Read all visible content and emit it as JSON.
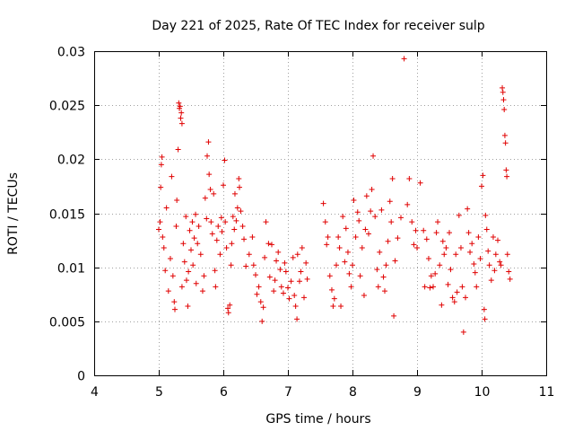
{
  "chart_data": {
    "type": "scatter",
    "title": "Day 221 of 2025, Rate Of TEC Index for receiver sulp",
    "xlabel": "GPS time / hours",
    "ylabel": "ROTI / TECUs",
    "xlim": [
      4,
      11
    ],
    "ylim": [
      0,
      0.03
    ],
    "xticks": [
      "4",
      "5",
      "6",
      "7",
      "8",
      "9",
      "10",
      "11"
    ],
    "yticks": [
      "0",
      "0.005",
      "0.01",
      "0.015",
      "0.02",
      "0.025",
      "0.03"
    ],
    "grid": true,
    "marker": "+",
    "colors": {
      "series": "#e00000",
      "grid": "#a0a0a0",
      "axes": "#000000"
    },
    "series": [
      {
        "name": "ROTI",
        "points": [
          [
            5.0,
            0.0135
          ],
          [
            5.02,
            0.0142
          ],
          [
            5.03,
            0.0174
          ],
          [
            5.04,
            0.0195
          ],
          [
            5.05,
            0.0202
          ],
          [
            5.06,
            0.0128
          ],
          [
            5.08,
            0.0118
          ],
          [
            5.1,
            0.0097
          ],
          [
            5.12,
            0.0155
          ],
          [
            5.15,
            0.0078
          ],
          [
            5.18,
            0.0108
          ],
          [
            5.2,
            0.0184
          ],
          [
            5.22,
            0.0092
          ],
          [
            5.24,
            0.0068
          ],
          [
            5.25,
            0.0061
          ],
          [
            5.27,
            0.0138
          ],
          [
            5.28,
            0.0162
          ],
          [
            5.3,
            0.0209
          ],
          [
            5.31,
            0.0252
          ],
          [
            5.32,
            0.0247
          ],
          [
            5.33,
            0.0249
          ],
          [
            5.34,
            0.0238
          ],
          [
            5.35,
            0.0243
          ],
          [
            5.36,
            0.0233
          ],
          [
            5.36,
            0.0082
          ],
          [
            5.38,
            0.0122
          ],
          [
            5.4,
            0.0105
          ],
          [
            5.42,
            0.0147
          ],
          [
            5.43,
            0.0088
          ],
          [
            5.45,
            0.0064
          ],
          [
            5.46,
            0.0096
          ],
          [
            5.48,
            0.0134
          ],
          [
            5.5,
            0.0116
          ],
          [
            5.52,
            0.0142
          ],
          [
            5.53,
            0.0102
          ],
          [
            5.55,
            0.0127
          ],
          [
            5.57,
            0.0149
          ],
          [
            5.58,
            0.0085
          ],
          [
            5.6,
            0.0122
          ],
          [
            5.62,
            0.0138
          ],
          [
            5.65,
            0.0112
          ],
          [
            5.68,
            0.0078
          ],
          [
            5.7,
            0.0092
          ],
          [
            5.72,
            0.0164
          ],
          [
            5.74,
            0.0145
          ],
          [
            5.75,
            0.0203
          ],
          [
            5.77,
            0.0216
          ],
          [
            5.78,
            0.0186
          ],
          [
            5.8,
            0.0172
          ],
          [
            5.81,
            0.0142
          ],
          [
            5.83,
            0.0131
          ],
          [
            5.85,
            0.0168
          ],
          [
            5.87,
            0.0097
          ],
          [
            5.88,
            0.0082
          ],
          [
            5.9,
            0.0125
          ],
          [
            5.92,
            0.0138
          ],
          [
            5.95,
            0.0112
          ],
          [
            5.97,
            0.0146
          ],
          [
            5.98,
            0.0133
          ],
          [
            6.0,
            0.0176
          ],
          [
            6.02,
            0.0199
          ],
          [
            6.03,
            0.0142
          ],
          [
            6.05,
            0.0118
          ],
          [
            6.07,
            0.0062
          ],
          [
            6.08,
            0.0058
          ],
          [
            6.1,
            0.0065
          ],
          [
            6.12,
            0.0102
          ],
          [
            6.13,
            0.0122
          ],
          [
            6.15,
            0.0147
          ],
          [
            6.17,
            0.0135
          ],
          [
            6.18,
            0.0168
          ],
          [
            6.2,
            0.0143
          ],
          [
            6.22,
            0.0155
          ],
          [
            6.24,
            0.0182
          ],
          [
            6.25,
            0.0174
          ],
          [
            6.27,
            0.0152
          ],
          [
            6.3,
            0.0138
          ],
          [
            6.32,
            0.0126
          ],
          [
            6.35,
            0.0101
          ],
          [
            6.4,
            0.0112
          ],
          [
            6.45,
            0.0128
          ],
          [
            6.47,
            0.0102
          ],
          [
            6.5,
            0.0093
          ],
          [
            6.52,
            0.0075
          ],
          [
            6.55,
            0.0082
          ],
          [
            6.58,
            0.0068
          ],
          [
            6.6,
            0.005
          ],
          [
            6.62,
            0.0063
          ],
          [
            6.64,
            0.0109
          ],
          [
            6.66,
            0.0142
          ],
          [
            6.7,
            0.0122
          ],
          [
            6.72,
            0.0091
          ],
          [
            6.75,
            0.0121
          ],
          [
            6.78,
            0.0078
          ],
          [
            6.8,
            0.0088
          ],
          [
            6.82,
            0.0106
          ],
          [
            6.85,
            0.0114
          ],
          [
            6.88,
            0.0098
          ],
          [
            6.9,
            0.0082
          ],
          [
            6.93,
            0.0076
          ],
          [
            6.95,
            0.0104
          ],
          [
            6.97,
            0.0096
          ],
          [
            7.0,
            0.0081
          ],
          [
            7.02,
            0.0071
          ],
          [
            7.05,
            0.0087
          ],
          [
            7.08,
            0.0109
          ],
          [
            7.1,
            0.0074
          ],
          [
            7.12,
            0.0064
          ],
          [
            7.14,
            0.0052
          ],
          [
            7.15,
            0.0112
          ],
          [
            7.18,
            0.0087
          ],
          [
            7.2,
            0.0096
          ],
          [
            7.22,
            0.0118
          ],
          [
            7.25,
            0.0072
          ],
          [
            7.28,
            0.0104
          ],
          [
            7.3,
            0.0089
          ],
          [
            7.55,
            0.0159
          ],
          [
            7.58,
            0.0142
          ],
          [
            7.6,
            0.0121
          ],
          [
            7.62,
            0.0128
          ],
          [
            7.65,
            0.0092
          ],
          [
            7.68,
            0.0079
          ],
          [
            7.7,
            0.0064
          ],
          [
            7.72,
            0.0071
          ],
          [
            7.75,
            0.0102
          ],
          [
            7.78,
            0.0128
          ],
          [
            7.8,
            0.0118
          ],
          [
            7.82,
            0.0064
          ],
          [
            7.85,
            0.0147
          ],
          [
            7.88,
            0.0105
          ],
          [
            7.9,
            0.0136
          ],
          [
            7.93,
            0.0114
          ],
          [
            7.95,
            0.0094
          ],
          [
            7.98,
            0.0082
          ],
          [
            8.0,
            0.0102
          ],
          [
            8.02,
            0.0162
          ],
          [
            8.05,
            0.0128
          ],
          [
            8.08,
            0.0151
          ],
          [
            8.1,
            0.0143
          ],
          [
            8.12,
            0.0092
          ],
          [
            8.15,
            0.0118
          ],
          [
            8.18,
            0.0074
          ],
          [
            8.2,
            0.0135
          ],
          [
            8.22,
            0.0166
          ],
          [
            8.25,
            0.0131
          ],
          [
            8.28,
            0.0152
          ],
          [
            8.3,
            0.0172
          ],
          [
            8.32,
            0.0203
          ],
          [
            8.35,
            0.0147
          ],
          [
            8.38,
            0.0098
          ],
          [
            8.4,
            0.0082
          ],
          [
            8.42,
            0.0114
          ],
          [
            8.45,
            0.0153
          ],
          [
            8.48,
            0.0091
          ],
          [
            8.5,
            0.0078
          ],
          [
            8.52,
            0.0102
          ],
          [
            8.55,
            0.0124
          ],
          [
            8.58,
            0.0161
          ],
          [
            8.6,
            0.0142
          ],
          [
            8.62,
            0.0182
          ],
          [
            8.64,
            0.0055
          ],
          [
            8.66,
            0.0106
          ],
          [
            8.7,
            0.0127
          ],
          [
            8.75,
            0.0146
          ],
          [
            8.8,
            0.0293
          ],
          [
            8.85,
            0.0158
          ],
          [
            8.88,
            0.0182
          ],
          [
            8.92,
            0.0142
          ],
          [
            8.95,
            0.0121
          ],
          [
            8.98,
            0.0134
          ],
          [
            9.0,
            0.0118
          ],
          [
            9.05,
            0.0178
          ],
          [
            9.1,
            0.0134
          ],
          [
            9.12,
            0.0082
          ],
          [
            9.15,
            0.0126
          ],
          [
            9.18,
            0.0108
          ],
          [
            9.2,
            0.0081
          ],
          [
            9.22,
            0.0092
          ],
          [
            9.25,
            0.0082
          ],
          [
            9.28,
            0.0094
          ],
          [
            9.3,
            0.0132
          ],
          [
            9.32,
            0.0142
          ],
          [
            9.35,
            0.0102
          ],
          [
            9.38,
            0.0065
          ],
          [
            9.4,
            0.0124
          ],
          [
            9.42,
            0.0112
          ],
          [
            9.45,
            0.0118
          ],
          [
            9.48,
            0.0084
          ],
          [
            9.5,
            0.0132
          ],
          [
            9.52,
            0.0098
          ],
          [
            9.55,
            0.0072
          ],
          [
            9.58,
            0.0068
          ],
          [
            9.6,
            0.0112
          ],
          [
            9.62,
            0.0077
          ],
          [
            9.65,
            0.0148
          ],
          [
            9.68,
            0.0118
          ],
          [
            9.7,
            0.0082
          ],
          [
            9.72,
            0.004
          ],
          [
            9.75,
            0.0072
          ],
          [
            9.78,
            0.0154
          ],
          [
            9.8,
            0.0132
          ],
          [
            9.82,
            0.0114
          ],
          [
            9.85,
            0.0122
          ],
          [
            9.88,
            0.0103
          ],
          [
            9.9,
            0.0095
          ],
          [
            9.92,
            0.0082
          ],
          [
            9.95,
            0.0128
          ],
          [
            9.98,
            0.0108
          ],
          [
            10.0,
            0.0175
          ],
          [
            10.02,
            0.0185
          ],
          [
            10.04,
            0.0061
          ],
          [
            10.05,
            0.0052
          ],
          [
            10.06,
            0.0148
          ],
          [
            10.08,
            0.0135
          ],
          [
            10.1,
            0.0115
          ],
          [
            10.12,
            0.0102
          ],
          [
            10.15,
            0.0088
          ],
          [
            10.18,
            0.0128
          ],
          [
            10.2,
            0.0097
          ],
          [
            10.22,
            0.0112
          ],
          [
            10.25,
            0.0125
          ],
          [
            10.28,
            0.0105
          ],
          [
            10.3,
            0.0102
          ],
          [
            10.32,
            0.0266
          ],
          [
            10.33,
            0.0262
          ],
          [
            10.34,
            0.0255
          ],
          [
            10.35,
            0.0246
          ],
          [
            10.36,
            0.0222
          ],
          [
            10.37,
            0.0215
          ],
          [
            10.38,
            0.019
          ],
          [
            10.39,
            0.0184
          ],
          [
            10.4,
            0.0112
          ],
          [
            10.42,
            0.0096
          ],
          [
            10.44,
            0.0089
          ]
        ]
      }
    ]
  }
}
